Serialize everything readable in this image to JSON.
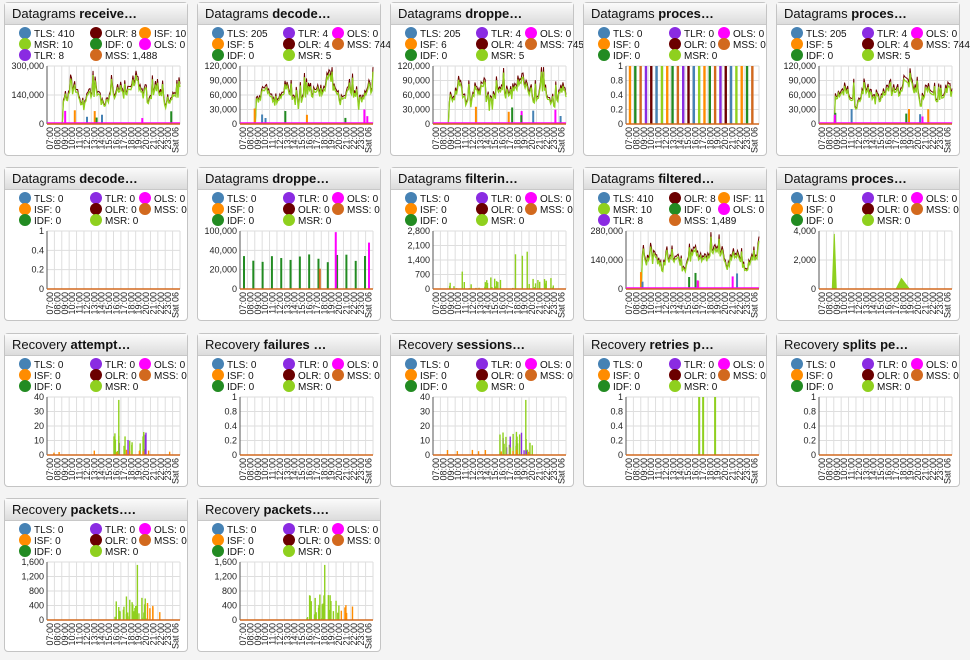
{
  "colors": {
    "TLS": "#4682b4",
    "ISF": "#ff8c00",
    "IDF": "#228b22",
    "TLR": "#8a2be2",
    "OLR": "#6b0000",
    "MSR": "#8fd01e",
    "OLS": "#ff00ff",
    "MSS": "#d2691e"
  },
  "xticks": [
    "07:00",
    "08:00",
    "09:00",
    "10:00",
    "11:00",
    "12:00",
    "13:00",
    "14:00",
    "15:00",
    "16:00",
    "17:00",
    "18:00",
    "19:00",
    "20:00",
    "21:00",
    "22:00",
    "23:00",
    "Sat 06"
  ],
  "panels": [
    {
      "title_plain": "Datagrams ",
      "title_bold": "receive…",
      "legend": [
        [
          "TLS",
          "410"
        ],
        [
          "OLR",
          "8"
        ],
        [
          "ISF",
          "10"
        ],
        [
          "MSR",
          "10"
        ],
        [
          "IDF",
          "0"
        ],
        [
          "OLS",
          "0"
        ],
        [
          "TLR",
          "8"
        ],
        [
          "MSS",
          "1,488"
        ]
      ],
      "yticks": [
        "300,000",
        "140,000",
        "0"
      ],
      "ymax": 300000,
      "shape": "busy"
    },
    {
      "title_plain": "Datagrams ",
      "title_bold": "decode…",
      "legend": [
        [
          "TLS",
          "205"
        ],
        [
          "TLR",
          "4"
        ],
        [
          "OLS",
          "0"
        ],
        [
          "ISF",
          "5"
        ],
        [
          "OLR",
          "4"
        ],
        [
          "MSS",
          "744"
        ],
        [
          "IDF",
          "0"
        ],
        [
          "MSR",
          "5"
        ]
      ],
      "yticks": [
        "120,000",
        "90,000",
        "60,000",
        "30,000",
        "0"
      ],
      "ymax": 120000,
      "shape": "busy"
    },
    {
      "title_plain": "Datagrams ",
      "title_bold": "droppe…",
      "legend": [
        [
          "TLS",
          "205"
        ],
        [
          "TLR",
          "4"
        ],
        [
          "OLS",
          "0"
        ],
        [
          "ISF",
          "6"
        ],
        [
          "OLR",
          "4"
        ],
        [
          "MSS",
          "745"
        ],
        [
          "IDF",
          "0"
        ],
        [
          "MSR",
          "5"
        ]
      ],
      "yticks": [
        "120,000",
        "90,000",
        "60,000",
        "30,000",
        "0"
      ],
      "ymax": 120000,
      "shape": "busy"
    },
    {
      "title_plain": "Datagrams ",
      "title_bold": "proces…",
      "legend": [
        [
          "TLS",
          "0"
        ],
        [
          "TLR",
          "0"
        ],
        [
          "OLS",
          "0"
        ],
        [
          "ISF",
          "0"
        ],
        [
          "OLR",
          "0"
        ],
        [
          "MSS",
          "0"
        ],
        [
          "IDF",
          "0"
        ],
        [
          "MSR",
          "0"
        ]
      ],
      "yticks": [
        "1",
        "0.8",
        "0.4",
        "0.2",
        "0"
      ],
      "ymax": 1,
      "shape": "stripes"
    },
    {
      "title_plain": "Datagrams ",
      "title_bold": "proces…",
      "legend": [
        [
          "TLS",
          "205"
        ],
        [
          "TLR",
          "4"
        ],
        [
          "OLS",
          "0"
        ],
        [
          "ISF",
          "5"
        ],
        [
          "OLR",
          "4"
        ],
        [
          "MSS",
          "744"
        ],
        [
          "IDF",
          "0"
        ],
        [
          "MSR",
          "5"
        ]
      ],
      "yticks": [
        "120,000",
        "90,000",
        "60,000",
        "30,000",
        "0"
      ],
      "ymax": 120000,
      "shape": "busy"
    },
    {
      "title_plain": "Datagrams ",
      "title_bold": "decode…",
      "legend": [
        [
          "TLS",
          "0"
        ],
        [
          "TLR",
          "0"
        ],
        [
          "OLS",
          "0"
        ],
        [
          "ISF",
          "0"
        ],
        [
          "OLR",
          "0"
        ],
        [
          "MSS",
          "0"
        ],
        [
          "IDF",
          "0"
        ],
        [
          "MSR",
          "0"
        ]
      ],
      "yticks": [
        "1",
        "0.4",
        "0.2",
        "0"
      ],
      "ymax": 1,
      "shape": "flat"
    },
    {
      "title_plain": "Datagrams ",
      "title_bold": "droppe…",
      "legend": [
        [
          "TLS",
          "0"
        ],
        [
          "TLR",
          "0"
        ],
        [
          "OLS",
          "0"
        ],
        [
          "ISF",
          "0"
        ],
        [
          "OLR",
          "0"
        ],
        [
          "MSS",
          "0"
        ],
        [
          "IDF",
          "0"
        ],
        [
          "MSR",
          "0"
        ]
      ],
      "yticks": [
        "100,000",
        "40,000",
        "20,000",
        "0"
      ],
      "ymax": 100000,
      "shape": "drops"
    },
    {
      "title_plain": "Datagrams ",
      "title_bold": "filterin…",
      "legend": [
        [
          "TLS",
          "0"
        ],
        [
          "TLR",
          "0"
        ],
        [
          "OLS",
          "0"
        ],
        [
          "ISF",
          "0"
        ],
        [
          "OLR",
          "0"
        ],
        [
          "MSS",
          "0"
        ],
        [
          "IDF",
          "0"
        ],
        [
          "MSR",
          "0"
        ]
      ],
      "yticks": [
        "2,800",
        "2,100",
        "1,400",
        "700",
        "0"
      ],
      "ymax": 2800,
      "shape": "filter"
    },
    {
      "title_plain": "Datagrams ",
      "title_bold": "filtered…",
      "legend": [
        [
          "TLS",
          "410"
        ],
        [
          "OLR",
          "8"
        ],
        [
          "ISF",
          "11"
        ],
        [
          "MSR",
          "10"
        ],
        [
          "IDF",
          "0"
        ],
        [
          "OLS",
          "0"
        ],
        [
          "TLR",
          "8"
        ],
        [
          "MSS",
          "1,489"
        ]
      ],
      "yticks": [
        "280,000",
        "140,000",
        "0"
      ],
      "ymax": 280000,
      "shape": "busy"
    },
    {
      "title_plain": "Datagrams ",
      "title_bold": "proces…",
      "legend": [
        [
          "TLS",
          "0"
        ],
        [
          "TLR",
          "0"
        ],
        [
          "OLS",
          "0"
        ],
        [
          "ISF",
          "0"
        ],
        [
          "OLR",
          "0"
        ],
        [
          "MSS",
          "0"
        ],
        [
          "IDF",
          "0"
        ],
        [
          "MSR",
          "0"
        ]
      ],
      "yticks": [
        "4,000",
        "2,000",
        "0"
      ],
      "ymax": 4000,
      "shape": "spike"
    },
    {
      "title_plain": "Recovery ",
      "title_bold": "attempt…",
      "legend": [
        [
          "TLS",
          "0"
        ],
        [
          "TLR",
          "0"
        ],
        [
          "OLS",
          "0"
        ],
        [
          "ISF",
          "0"
        ],
        [
          "OLR",
          "0"
        ],
        [
          "MSS",
          "0"
        ],
        [
          "IDF",
          "0"
        ],
        [
          "MSR",
          "0"
        ]
      ],
      "yticks": [
        "40",
        "30",
        "20",
        "10",
        "0"
      ],
      "ymax": 40,
      "shape": "recov"
    },
    {
      "title_plain": "Recovery ",
      "title_bold": "failures …",
      "legend": [
        [
          "TLS",
          "0"
        ],
        [
          "TLR",
          "0"
        ],
        [
          "OLS",
          "0"
        ],
        [
          "ISF",
          "0"
        ],
        [
          "OLR",
          "0"
        ],
        [
          "MSS",
          "0"
        ],
        [
          "IDF",
          "0"
        ],
        [
          "MSR",
          "0"
        ]
      ],
      "yticks": [
        "1",
        "0.8",
        "0.4",
        "0.2",
        "0"
      ],
      "ymax": 1,
      "shape": "flat"
    },
    {
      "title_plain": "Recovery ",
      "title_bold": "sessions…",
      "legend": [
        [
          "TLS",
          "0"
        ],
        [
          "TLR",
          "0"
        ],
        [
          "OLS",
          "0"
        ],
        [
          "ISF",
          "0"
        ],
        [
          "OLR",
          "0"
        ],
        [
          "MSS",
          "0"
        ],
        [
          "IDF",
          "0"
        ],
        [
          "MSR",
          "0"
        ]
      ],
      "yticks": [
        "40",
        "30",
        "20",
        "10",
        "0"
      ],
      "ymax": 40,
      "shape": "recov"
    },
    {
      "title_plain": "Recovery ",
      "title_bold": "retries p…",
      "legend": [
        [
          "TLS",
          "0"
        ],
        [
          "TLR",
          "0"
        ],
        [
          "OLS",
          "0"
        ],
        [
          "ISF",
          "0"
        ],
        [
          "OLR",
          "0"
        ],
        [
          "MSS",
          "0"
        ],
        [
          "IDF",
          "0"
        ],
        [
          "MSR",
          "0"
        ]
      ],
      "yticks": [
        "1",
        "0.8",
        "0.4",
        "0.2",
        "0"
      ],
      "ymax": 1,
      "shape": "retries"
    },
    {
      "title_plain": "Recovery ",
      "title_bold": "splits pe…",
      "legend": [
        [
          "TLS",
          "0"
        ],
        [
          "TLR",
          "0"
        ],
        [
          "OLS",
          "0"
        ],
        [
          "ISF",
          "0"
        ],
        [
          "OLR",
          "0"
        ],
        [
          "MSS",
          "0"
        ],
        [
          "IDF",
          "0"
        ],
        [
          "MSR",
          "0"
        ]
      ],
      "yticks": [
        "1",
        "0.8",
        "0.4",
        "0.2",
        "0"
      ],
      "ymax": 1,
      "shape": "flat"
    },
    {
      "title_plain": "Recovery ",
      "title_bold": "packets….",
      "legend": [
        [
          "TLS",
          "0"
        ],
        [
          "TLR",
          "0"
        ],
        [
          "OLS",
          "0"
        ],
        [
          "ISF",
          "0"
        ],
        [
          "OLR",
          "0"
        ],
        [
          "MSS",
          "0"
        ],
        [
          "IDF",
          "0"
        ],
        [
          "MSR",
          "0"
        ]
      ],
      "yticks": [
        "1,600",
        "1,200",
        "800",
        "400",
        "0"
      ],
      "ymax": 1600,
      "shape": "packets"
    },
    {
      "title_plain": "Recovery ",
      "title_bold": "packets….",
      "legend": [
        [
          "TLS",
          "0"
        ],
        [
          "TLR",
          "0"
        ],
        [
          "OLS",
          "0"
        ],
        [
          "ISF",
          "0"
        ],
        [
          "OLR",
          "0"
        ],
        [
          "MSS",
          "0"
        ],
        [
          "IDF",
          "0"
        ],
        [
          "MSR",
          "0"
        ]
      ],
      "yticks": [
        "1,600",
        "1,200",
        "800",
        "400",
        "0"
      ],
      "ymax": 1600,
      "shape": "packets"
    }
  ]
}
